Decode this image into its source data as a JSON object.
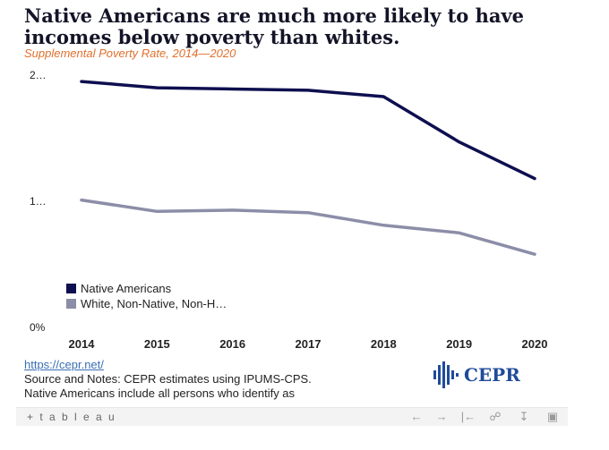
{
  "header": {
    "title": "Native Americans are much more likely to have incomes below poverty than whites.",
    "subtitle": "Supplemental Poverty Rate, 2014—2020"
  },
  "chart_data": {
    "type": "line",
    "x": [
      "2014",
      "2015",
      "2016",
      "2017",
      "2018",
      "2019",
      "2020"
    ],
    "y_tick_labels": [
      "2…",
      "1…",
      "0%"
    ],
    "y_tick_values": [
      0.2,
      0.1,
      0
    ],
    "ylim": [
      0,
      0.2
    ],
    "grid": false,
    "legend_position": "bottom-left",
    "series": [
      {
        "name": "Native Americans",
        "color": "#0d0f4f",
        "values": [
          0.195,
          0.19,
          0.189,
          0.188,
          0.183,
          0.147,
          0.118
        ]
      },
      {
        "name": "White, Non-Native, Non-H…",
        "color": "#8c8ea8",
        "values": [
          0.101,
          0.092,
          0.093,
          0.091,
          0.081,
          0.075,
          0.058
        ]
      }
    ]
  },
  "footer": {
    "link": "https://cepr.net/",
    "source_line": "Source and Notes: CEPR estimates using IPUMS-CPS.",
    "note_line": "Native Americans include all persons who identify as"
  },
  "logo": {
    "text": "CEPR"
  },
  "toolbar": {
    "brand": "+ t a b l e a u",
    "buttons": [
      "undo",
      "redo",
      "revert",
      "share",
      "download",
      "fullscreen"
    ]
  }
}
